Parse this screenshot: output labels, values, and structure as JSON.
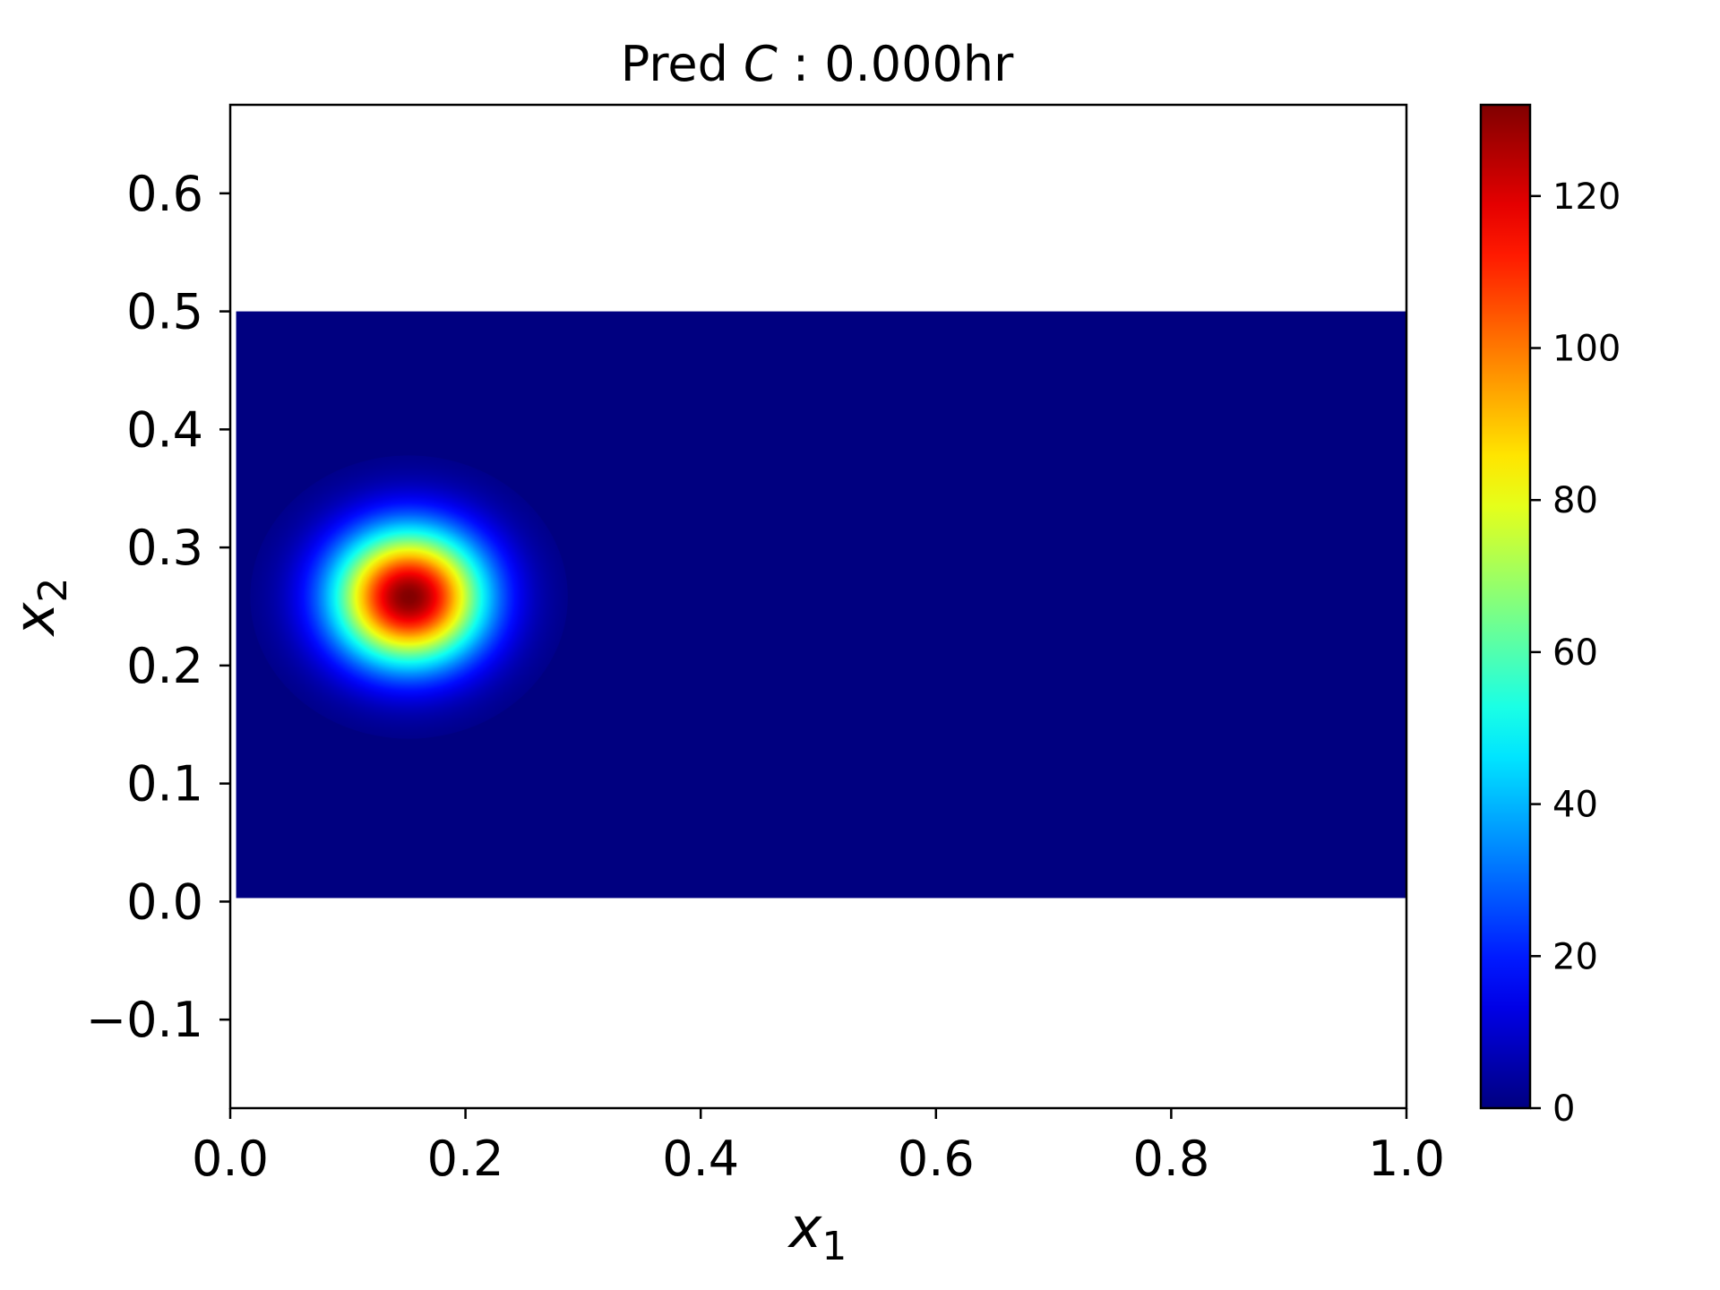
{
  "chart_data": {
    "type": "heatmap",
    "title": "Pred C : 0.000hr",
    "title_parts": {
      "prefix": "Pred ",
      "variable": "C",
      "suffix": " : 0.000hr"
    },
    "xlabel": {
      "symbol": "x",
      "subscript": "1"
    },
    "ylabel": {
      "symbol": "x",
      "subscript": "2"
    },
    "xlim": [
      0.0,
      1.0
    ],
    "ylim": [
      -0.175,
      0.675
    ],
    "x_ticks": [
      0.0,
      0.2,
      0.4,
      0.6,
      0.8,
      1.0
    ],
    "x_tick_labels": [
      "0.0",
      "0.2",
      "0.4",
      "0.6",
      "0.8",
      "1.0"
    ],
    "y_ticks": [
      -0.1,
      0.0,
      0.1,
      0.2,
      0.3,
      0.4,
      0.5,
      0.6
    ],
    "y_tick_labels": [
      "−0.1",
      "0.0",
      "0.1",
      "0.2",
      "0.3",
      "0.4",
      "0.5",
      "0.6"
    ],
    "domain": {
      "x": [
        0.005,
        1.0
      ],
      "y": [
        0.003,
        0.5
      ]
    },
    "field": {
      "description": "single Gaussian-like concentration blob, zero elsewhere",
      "peak_center": [
        0.152,
        0.258
      ],
      "peak_value": 132,
      "spread": [
        0.045,
        0.04
      ],
      "background_value": 0
    },
    "colorbar": {
      "colormap": "jet",
      "vmin": 0,
      "vmax": 132,
      "ticks": [
        0,
        20,
        40,
        60,
        80,
        100,
        120
      ],
      "tick_labels": [
        "0",
        "20",
        "40",
        "60",
        "80",
        "100",
        "120"
      ]
    },
    "grid": false,
    "legend": "none"
  }
}
